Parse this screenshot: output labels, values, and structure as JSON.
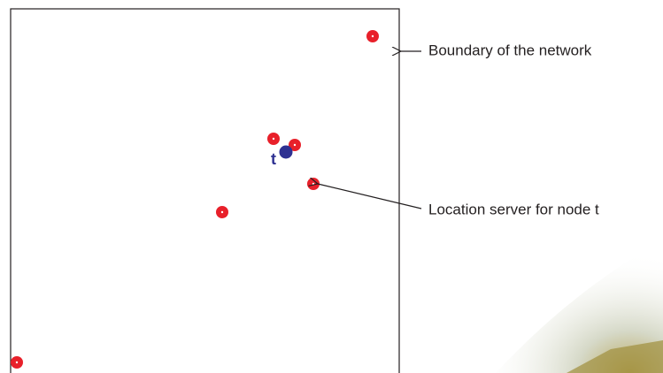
{
  "annotations": {
    "boundary": "Boundary of the network",
    "location_server": "Location server for node t"
  },
  "node_label": "t"
}
